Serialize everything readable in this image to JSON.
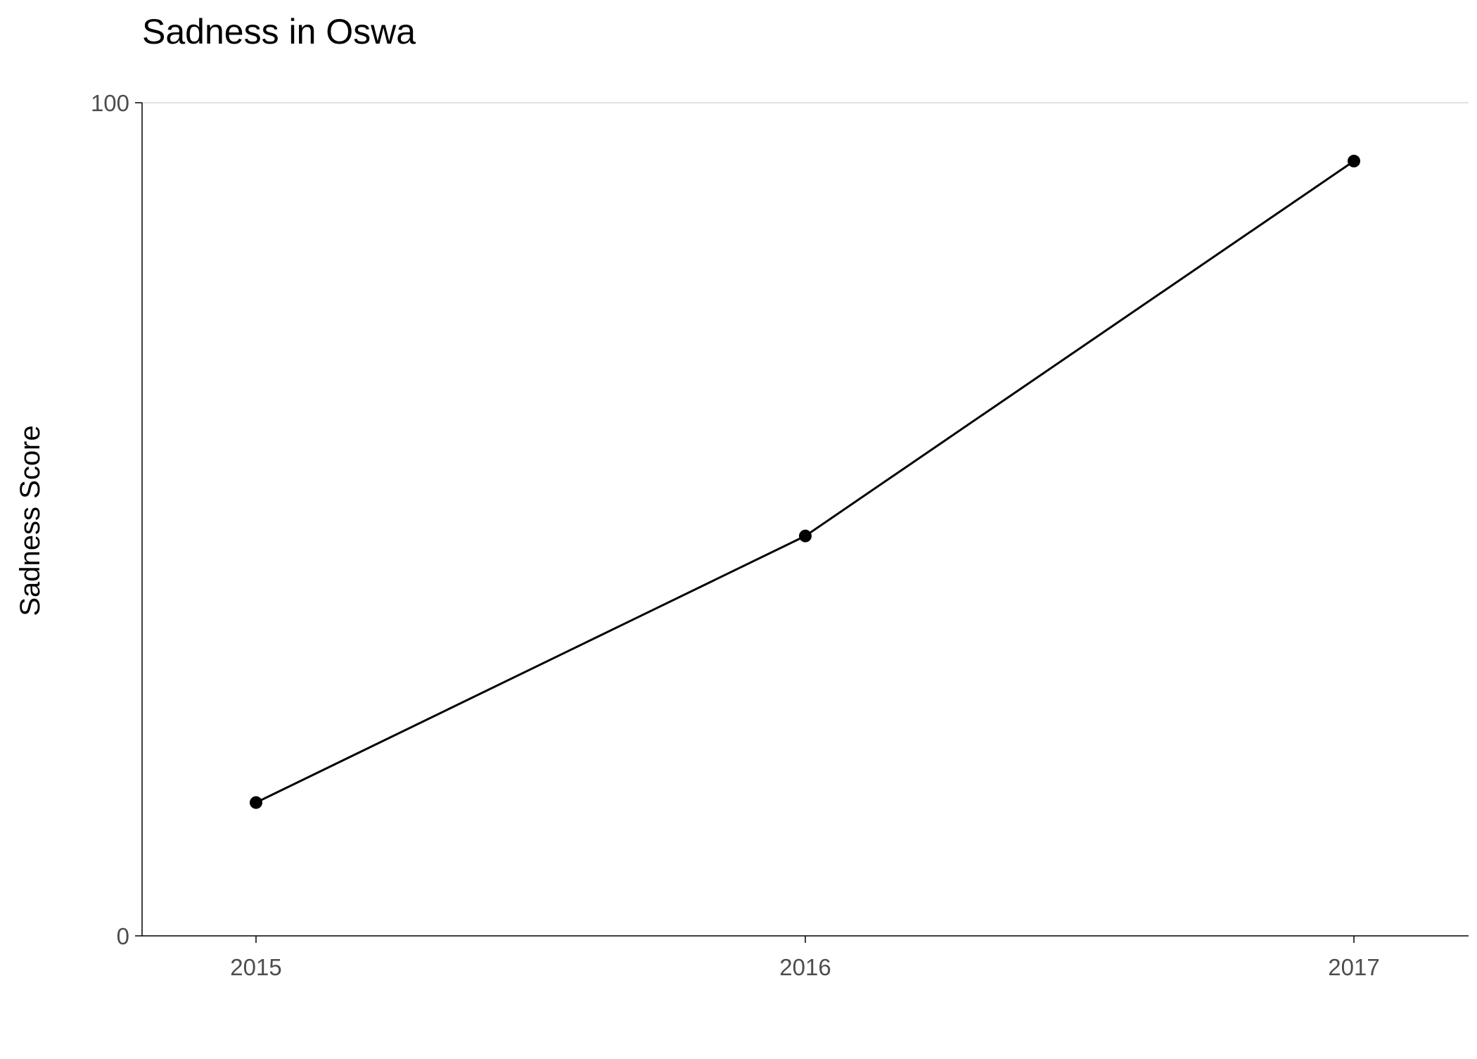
{
  "chart_data": {
    "type": "line",
    "title": "Sadness in Oswa",
    "xlabel": "",
    "ylabel": "Sadness Score",
    "x": [
      "2015",
      "2016",
      "2017"
    ],
    "series": [
      {
        "values": [
          16,
          48,
          93
        ]
      }
    ],
    "ylim": [
      0,
      100
    ],
    "yticks": [
      "0",
      "100"
    ],
    "grid": "horizontal-at-top-tick",
    "legend": "none",
    "colors": {
      "line": "#000000",
      "point": "#000000",
      "axis": "#000000",
      "grid": "#d9d9d9",
      "tick_text": "#4d4d4d"
    }
  }
}
